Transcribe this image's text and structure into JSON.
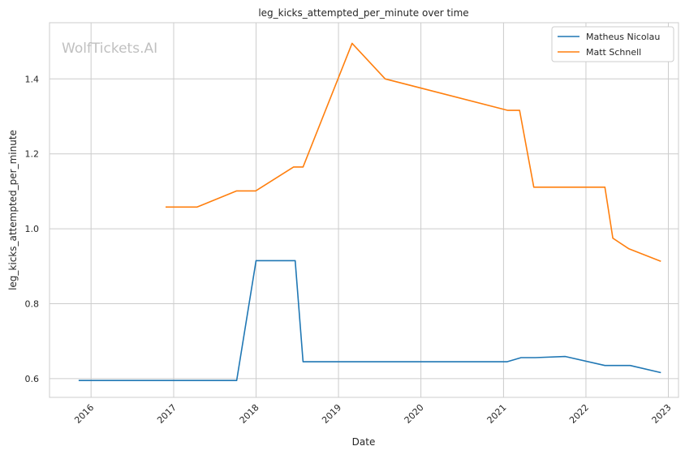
{
  "chart_data": {
    "type": "line",
    "title": "leg_kicks_attempted_per_minute over time",
    "xlabel": "Date",
    "ylabel": "leg_kicks_attempted_per_minute",
    "watermark": "WolfTickets.AI",
    "xlim": [
      "2015-07-01",
      "2023-02-15"
    ],
    "ylim": [
      0.55,
      1.55
    ],
    "x_ticks": [
      "2016-01-01",
      "2017-01-01",
      "2018-01-01",
      "2019-01-01",
      "2020-01-01",
      "2021-01-01",
      "2022-01-01",
      "2023-01-01"
    ],
    "x_tick_labels": [
      "2016",
      "2017",
      "2018",
      "2019",
      "2020",
      "2021",
      "2022",
      "2023"
    ],
    "y_ticks": [
      0.6,
      0.8,
      1.0,
      1.2,
      1.4
    ],
    "y_tick_labels": [
      "0.6",
      "0.8",
      "1.0",
      "1.2",
      "1.4"
    ],
    "grid": true,
    "legend_position": "top-right",
    "series": [
      {
        "name": "Matheus Nicolau",
        "color": "#1f77b4",
        "points": [
          {
            "x": "2015-11-07",
            "y": 0.595
          },
          {
            "x": "2017-10-07",
            "y": 0.595
          },
          {
            "x": "2018-01-01",
            "y": 0.915
          },
          {
            "x": "2018-06-23",
            "y": 0.915
          },
          {
            "x": "2018-07-28",
            "y": 0.645
          },
          {
            "x": "2021-01-16",
            "y": 0.645
          },
          {
            "x": "2021-03-20",
            "y": 0.656
          },
          {
            "x": "2021-05-22",
            "y": 0.656
          },
          {
            "x": "2021-10-02",
            "y": 0.659
          },
          {
            "x": "2022-03-26",
            "y": 0.635
          },
          {
            "x": "2022-07-16",
            "y": 0.635
          },
          {
            "x": "2022-11-29",
            "y": 0.616
          }
        ]
      },
      {
        "name": "Matt Schnell",
        "color": "#ff7f0e",
        "points": [
          {
            "x": "2016-11-26",
            "y": 1.058
          },
          {
            "x": "2017-04-15",
            "y": 1.058
          },
          {
            "x": "2017-10-07",
            "y": 1.101
          },
          {
            "x": "2017-12-30",
            "y": 1.101
          },
          {
            "x": "2018-06-16",
            "y": 1.165
          },
          {
            "x": "2018-07-28",
            "y": 1.165
          },
          {
            "x": "2019-03-02",
            "y": 1.495
          },
          {
            "x": "2019-07-27",
            "y": 1.4
          },
          {
            "x": "2021-01-20",
            "y": 1.316
          },
          {
            "x": "2021-03-13",
            "y": 1.316
          },
          {
            "x": "2021-05-15",
            "y": 1.111
          },
          {
            "x": "2022-03-26",
            "y": 1.111
          },
          {
            "x": "2022-04-30",
            "y": 0.975
          },
          {
            "x": "2022-07-09",
            "y": 0.947
          },
          {
            "x": "2022-11-29",
            "y": 0.913
          }
        ]
      }
    ]
  }
}
